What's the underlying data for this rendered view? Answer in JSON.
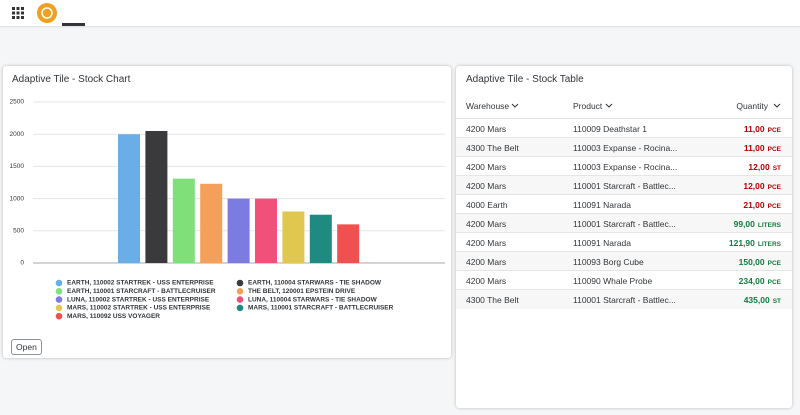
{
  "chart_data": {
    "type": "bar",
    "title": "Adaptive Tile - Stock Chart",
    "ylim": [
      0,
      2500
    ],
    "yticks": [
      0,
      500,
      1000,
      1500,
      2000,
      2500
    ],
    "grid": true,
    "legend": "bottom",
    "series": [
      {
        "name": "EARTH, 110002 STARTREK - USS ENTERPRISE",
        "color": "#6aaee8",
        "values": [
          2000
        ]
      },
      {
        "name": "EARTH, 110004 STARWARS - TIE SHADOW",
        "color": "#3a3a3c",
        "values": [
          2050
        ]
      },
      {
        "name": "EARTH, 110001 STARCRAFT - BATTLECRUISER",
        "color": "#7fe07a",
        "values": [
          1310
        ]
      },
      {
        "name": "THE BELT, 120001 EPSTEIN DRIVE",
        "color": "#f5a05a",
        "values": [
          1230
        ]
      },
      {
        "name": "LUNA, 110002 STARTREK - USS ENTERPRISE",
        "color": "#7b7be0",
        "values": [
          1000
        ]
      },
      {
        "name": "LUNA, 110004 STARWARS - TIE SHADOW",
        "color": "#f0507a",
        "values": [
          1000
        ]
      },
      {
        "name": "MARS, 110002 STARTREK - USS ENTERPRISE",
        "color": "#e0c850",
        "values": [
          800
        ]
      },
      {
        "name": "MARS, 110001 STARCRAFT - BATTLECRUISER",
        "color": "#1f8a80",
        "values": [
          750
        ]
      },
      {
        "name": "MARS, 110092 USS VOYAGER",
        "color": "#f05050",
        "values": [
          600
        ]
      }
    ]
  },
  "open_button": "Open",
  "table": {
    "title": "Adaptive Tile - Stock Table",
    "headers": [
      "Warehouse",
      "Product",
      "Quantity"
    ],
    "rows": [
      {
        "warehouse": "4200 Mars",
        "product": "110009 Deathstar 1",
        "quantity": "11,00",
        "unit": "PCE",
        "color": "#bb0000"
      },
      {
        "warehouse": "4300 The Belt",
        "product": "110003 Expanse - Rocina...",
        "quantity": "11,00",
        "unit": "PCE",
        "color": "#bb0000"
      },
      {
        "warehouse": "4200 Mars",
        "product": "110003 Expanse - Rocina...",
        "quantity": "12,00",
        "unit": "ST",
        "color": "#bb0000"
      },
      {
        "warehouse": "4200 Mars",
        "product": "110001 Starcraft - Battlec...",
        "quantity": "12,00",
        "unit": "PCE",
        "color": "#bb0000"
      },
      {
        "warehouse": "4000 Earth",
        "product": "110091 Narada",
        "quantity": "21,00",
        "unit": "PCE",
        "color": "#bb0000"
      },
      {
        "warehouse": "4200 Mars",
        "product": "110001 Starcraft - Battlec...",
        "quantity": "99,00",
        "unit": "LITERS",
        "color": "#107e3e"
      },
      {
        "warehouse": "4200 Mars",
        "product": "110091 Narada",
        "quantity": "121,90",
        "unit": "LITERS",
        "color": "#107e3e"
      },
      {
        "warehouse": "4200 Mars",
        "product": "110093 Borg Cube",
        "quantity": "150,00",
        "unit": "PCE",
        "color": "#107e3e"
      },
      {
        "warehouse": "4200 Mars",
        "product": "110090 Whale Probe",
        "quantity": "234,00",
        "unit": "PCE",
        "color": "#107e3e"
      },
      {
        "warehouse": "4300 The Belt",
        "product": "110001 Starcraft - Battlec...",
        "quantity": "435,00",
        "unit": "ST",
        "color": "#107e3e"
      }
    ]
  }
}
